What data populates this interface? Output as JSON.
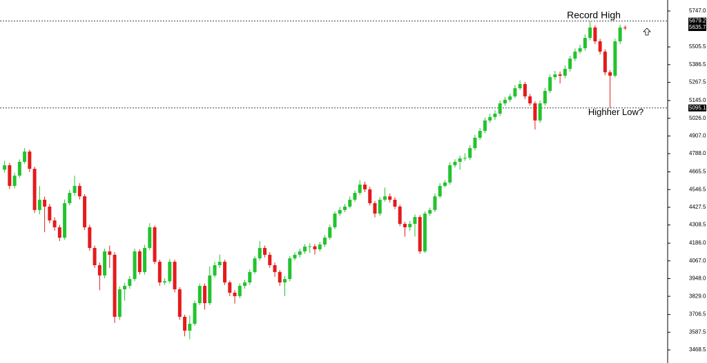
{
  "chart_data": {
    "type": "candlestick",
    "up_color": "#22c32e",
    "down_color": "#e31b1b",
    "ylim": [
      3380.5,
      5821
    ],
    "yticks": [
      {
        "value": 5747.0,
        "label": "5747.0"
      },
      {
        "value": 5505.5,
        "label": "5505.5"
      },
      {
        "value": 5386.5,
        "label": "5386.5"
      },
      {
        "value": 5267.5,
        "label": "5267.5"
      },
      {
        "value": 5145.0,
        "label": "5145.0"
      },
      {
        "value": 5026.0,
        "label": "5026.0"
      },
      {
        "value": 4907.0,
        "label": "4907.0"
      },
      {
        "value": 4788.0,
        "label": "4788.0"
      },
      {
        "value": 4665.5,
        "label": "4665.5"
      },
      {
        "value": 4546.5,
        "label": "4546.5"
      },
      {
        "value": 4427.5,
        "label": "4427.5"
      },
      {
        "value": 4308.5,
        "label": "4308.5"
      },
      {
        "value": 4186.0,
        "label": "4186.0"
      },
      {
        "value": 4067.0,
        "label": "4067.0"
      },
      {
        "value": 3948.0,
        "label": "3948.0"
      },
      {
        "value": 3829.0,
        "label": "3829.0"
      },
      {
        "value": 3706.5,
        "label": "3706.5"
      },
      {
        "value": 3587.5,
        "label": "3587.5"
      },
      {
        "value": 3468.5,
        "label": "3468.5"
      }
    ],
    "levels": [
      {
        "value": 5679.2,
        "label": "5679.2",
        "text": "Record High"
      },
      {
        "value": 5095.1,
        "label": "5095.1",
        "text": "Highher Low?"
      }
    ],
    "current_price": {
      "value": 5635.7,
      "label": "5635.7"
    },
    "open": [
      4680,
      4710,
      4571,
      4640,
      4733,
      4802,
      4686,
      4409,
      4478,
      4432,
      4339,
      4293,
      4223,
      4455,
      4524,
      4571,
      4501,
      4293,
      4154,
      4038,
      3969,
      4131,
      4108,
      3691,
      3876,
      3899,
      3945,
      4131,
      3992,
      4154,
      4293,
      4061,
      3922,
      3930,
      4061,
      3876,
      3691,
      3598,
      3644,
      3783,
      3899,
      3783,
      3969,
      4038,
      4061,
      3922,
      3853,
      3830,
      3899,
      3922,
      3992,
      4084,
      4154,
      4108,
      4038,
      3992,
      3922,
      3945,
      4084,
      4108,
      4131,
      4163,
      4165,
      4145,
      4177,
      4223,
      4293,
      4385,
      4409,
      4432,
      4478,
      4524,
      4580,
      4548,
      4455,
      4385,
      4478,
      4501,
      4478,
      4432,
      4316,
      4293,
      4316,
      4362,
      4131,
      4385,
      4409,
      4501,
      4571,
      4594,
      4710,
      4733,
      4756,
      4760,
      4825,
      4895,
      4941,
      5011,
      5034,
      5057,
      5126,
      5150,
      5173,
      5228,
      5256,
      5173,
      5126,
      5011,
      5126,
      5210,
      5302,
      5321,
      5312,
      5358,
      5427,
      5474,
      5497,
      5566,
      5636,
      5543,
      5474,
      5335,
      5312,
      5543,
      5636
    ],
    "high": [
      4740,
      4725,
      4660,
      4750,
      4825,
      4815,
      4700,
      4570,
      4500,
      4450,
      4360,
      4310,
      4480,
      4545,
      4640,
      4590,
      4515,
      4310,
      4170,
      4055,
      4150,
      4170,
      4125,
      3895,
      3920,
      3965,
      4150,
      4145,
      4175,
      4320,
      4305,
      4075,
      3950,
      4080,
      4075,
      3890,
      3705,
      3700,
      3800,
      3915,
      3915,
      4030,
      4060,
      4110,
      4075,
      3935,
      3870,
      3915,
      3940,
      4010,
      4100,
      4200,
      4170,
      4125,
      4055,
      4005,
      3965,
      4100,
      4125,
      4150,
      4180,
      4185,
      4180,
      4195,
      4240,
      4310,
      4400,
      4430,
      4450,
      4500,
      4540,
      4610,
      4600,
      4565,
      4470,
      4495,
      4560,
      4520,
      4495,
      4445,
      4330,
      4335,
      4380,
      4375,
      4400,
      4425,
      4520,
      4590,
      4610,
      4730,
      4750,
      4775,
      4790,
      4845,
      4915,
      4960,
      5030,
      5055,
      5080,
      5145,
      5170,
      5190,
      5250,
      5280,
      5270,
      5190,
      5140,
      5145,
      5230,
      5320,
      5345,
      5340,
      5380,
      5445,
      5495,
      5520,
      5590,
      5679.2,
      5650,
      5560,
      5490,
      5350,
      5560,
      5655,
      5650
    ],
    "low": [
      4660,
      4550,
      4555,
      4625,
      4720,
      4665,
      4390,
      4380,
      4260,
      4320,
      4270,
      4200,
      4210,
      4440,
      4505,
      4480,
      4275,
      4135,
      4020,
      3870,
      3950,
      4020,
      3650,
      3670,
      3800,
      3880,
      3930,
      3975,
      3975,
      4140,
      4045,
      3900,
      3905,
      3915,
      3855,
      3670,
      3560,
      3540,
      3630,
      3770,
      3740,
      3770,
      3955,
      4020,
      3905,
      3830,
      3780,
      3815,
      3880,
      3905,
      3980,
      4070,
      4090,
      4020,
      3960,
      3900,
      3830,
      3930,
      4070,
      4090,
      4115,
      4120,
      4110,
      4130,
      4160,
      4210,
      4280,
      4370,
      4395,
      4420,
      4465,
      4510,
      4530,
      4440,
      4360,
      4370,
      4465,
      4460,
      4415,
      4300,
      4230,
      4270,
      4230,
      4115,
      4120,
      4370,
      4395,
      4490,
      4560,
      4580,
      4695,
      4680,
      4740,
      4745,
      4810,
      4880,
      4925,
      4995,
      5015,
      5040,
      5110,
      5135,
      5160,
      5215,
      5155,
      5110,
      4950,
      4995,
      5110,
      5195,
      5285,
      5260,
      5295,
      5340,
      5410,
      5460,
      5480,
      5550,
      5525,
      5455,
      5315,
      5095.1,
      5300,
      5525,
      5620
    ],
    "close": [
      4710,
      4571,
      4640,
      4733,
      4802,
      4686,
      4409,
      4478,
      4432,
      4339,
      4293,
      4223,
      4455,
      4524,
      4571,
      4501,
      4293,
      4154,
      4038,
      3969,
      4131,
      4108,
      3691,
      3876,
      3899,
      3945,
      4131,
      3992,
      4154,
      4293,
      4061,
      3922,
      3930,
      4061,
      3876,
      3691,
      3598,
      3644,
      3783,
      3899,
      3783,
      3969,
      4038,
      4061,
      3922,
      3853,
      3830,
      3899,
      3922,
      3992,
      4084,
      4154,
      4108,
      4038,
      3992,
      3922,
      3945,
      4084,
      4108,
      4131,
      4163,
      4165,
      4145,
      4177,
      4223,
      4293,
      4385,
      4409,
      4432,
      4478,
      4524,
      4580,
      4548,
      4455,
      4385,
      4478,
      4501,
      4478,
      4432,
      4316,
      4293,
      4316,
      4362,
      4131,
      4385,
      4409,
      4501,
      4571,
      4594,
      4710,
      4733,
      4756,
      4760,
      4825,
      4895,
      4941,
      5011,
      5034,
      5057,
      5126,
      5150,
      5173,
      5228,
      5256,
      5173,
      5126,
      5011,
      5126,
      5210,
      5302,
      5321,
      5312,
      5358,
      5427,
      5474,
      5497,
      5566,
      5636,
      5543,
      5474,
      5335,
      5312,
      5543,
      5636,
      5635.7
    ]
  }
}
